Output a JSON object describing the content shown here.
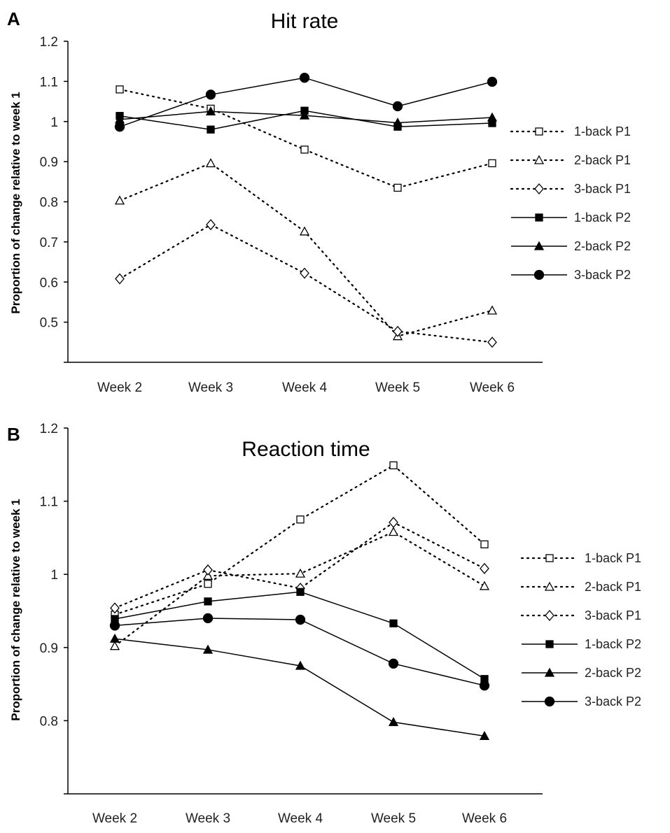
{
  "chart_data": [
    {
      "type": "line",
      "panel": "A",
      "title": "Hit rate",
      "xlabel": "",
      "ylabel": "Proportion of change relative to week 1",
      "categories": [
        "Week 2",
        "Week 3",
        "Week 4",
        "Week 5",
        "Week 6"
      ],
      "ylim": [
        0.4,
        1.2
      ],
      "yticks": [
        "1.2",
        "1.1",
        "1",
        "0.9",
        "0.8",
        "0.7",
        "0.6",
        "0.5"
      ],
      "ytick_values": [
        1.2,
        1.1,
        1.0,
        0.9,
        0.8,
        0.7,
        0.6,
        0.5
      ],
      "legend_position": "right",
      "series": [
        {
          "name": "1-back P1",
          "style": "dotted",
          "marker": "open-square",
          "values": [
            1.08,
            1.032,
            0.93,
            0.835,
            0.896
          ]
        },
        {
          "name": "2-back P1",
          "style": "dotted",
          "marker": "open-triangle",
          "values": [
            0.803,
            0.896,
            0.726,
            0.465,
            0.529
          ]
        },
        {
          "name": "3-back P1",
          "style": "dotted",
          "marker": "open-diamond",
          "values": [
            0.608,
            0.743,
            0.622,
            0.477,
            0.45
          ]
        },
        {
          "name": "1-back P2",
          "style": "solid",
          "marker": "filled-square",
          "values": [
            1.014,
            0.98,
            1.027,
            0.987,
            0.996
          ]
        },
        {
          "name": "2-back P2",
          "style": "solid",
          "marker": "filled-triangle",
          "values": [
            1.005,
            1.025,
            1.015,
            0.997,
            1.01
          ]
        },
        {
          "name": "3-back P2",
          "style": "solid",
          "marker": "filled-circle",
          "values": [
            0.987,
            1.067,
            1.109,
            1.038,
            1.099
          ]
        }
      ]
    },
    {
      "type": "line",
      "panel": "B",
      "title": "Reaction time",
      "xlabel": "",
      "ylabel": "Proportion of change relative to week 1",
      "categories": [
        "Week 2",
        "Week 3",
        "Week 4",
        "Week 5",
        "Week 6"
      ],
      "ylim": [
        0.7,
        1.2
      ],
      "yticks": [
        "1.2",
        "1.1",
        "1",
        "0.9",
        "0.8"
      ],
      "ytick_values": [
        1.2,
        1.1,
        1.0,
        0.9,
        0.8
      ],
      "legend_position": "right",
      "series": [
        {
          "name": "1-back P1",
          "style": "dotted",
          "marker": "open-square",
          "values": [
            0.945,
            0.987,
            1.075,
            1.149,
            1.041
          ]
        },
        {
          "name": "2-back P1",
          "style": "dotted",
          "marker": "open-triangle",
          "values": [
            0.902,
            0.998,
            1.001,
            1.058,
            0.984
          ]
        },
        {
          "name": "3-back P1",
          "style": "dotted",
          "marker": "open-diamond",
          "values": [
            0.954,
            1.006,
            0.981,
            1.071,
            1.008
          ]
        },
        {
          "name": "1-back P2",
          "style": "solid",
          "marker": "filled-square",
          "values": [
            0.939,
            0.963,
            0.976,
            0.933,
            0.857
          ]
        },
        {
          "name": "2-back P2",
          "style": "solid",
          "marker": "filled-triangle",
          "values": [
            0.912,
            0.897,
            0.875,
            0.798,
            0.779
          ]
        },
        {
          "name": "3-back P2",
          "style": "solid",
          "marker": "filled-circle",
          "values": [
            0.93,
            0.94,
            0.938,
            0.878,
            0.848
          ]
        }
      ]
    }
  ]
}
